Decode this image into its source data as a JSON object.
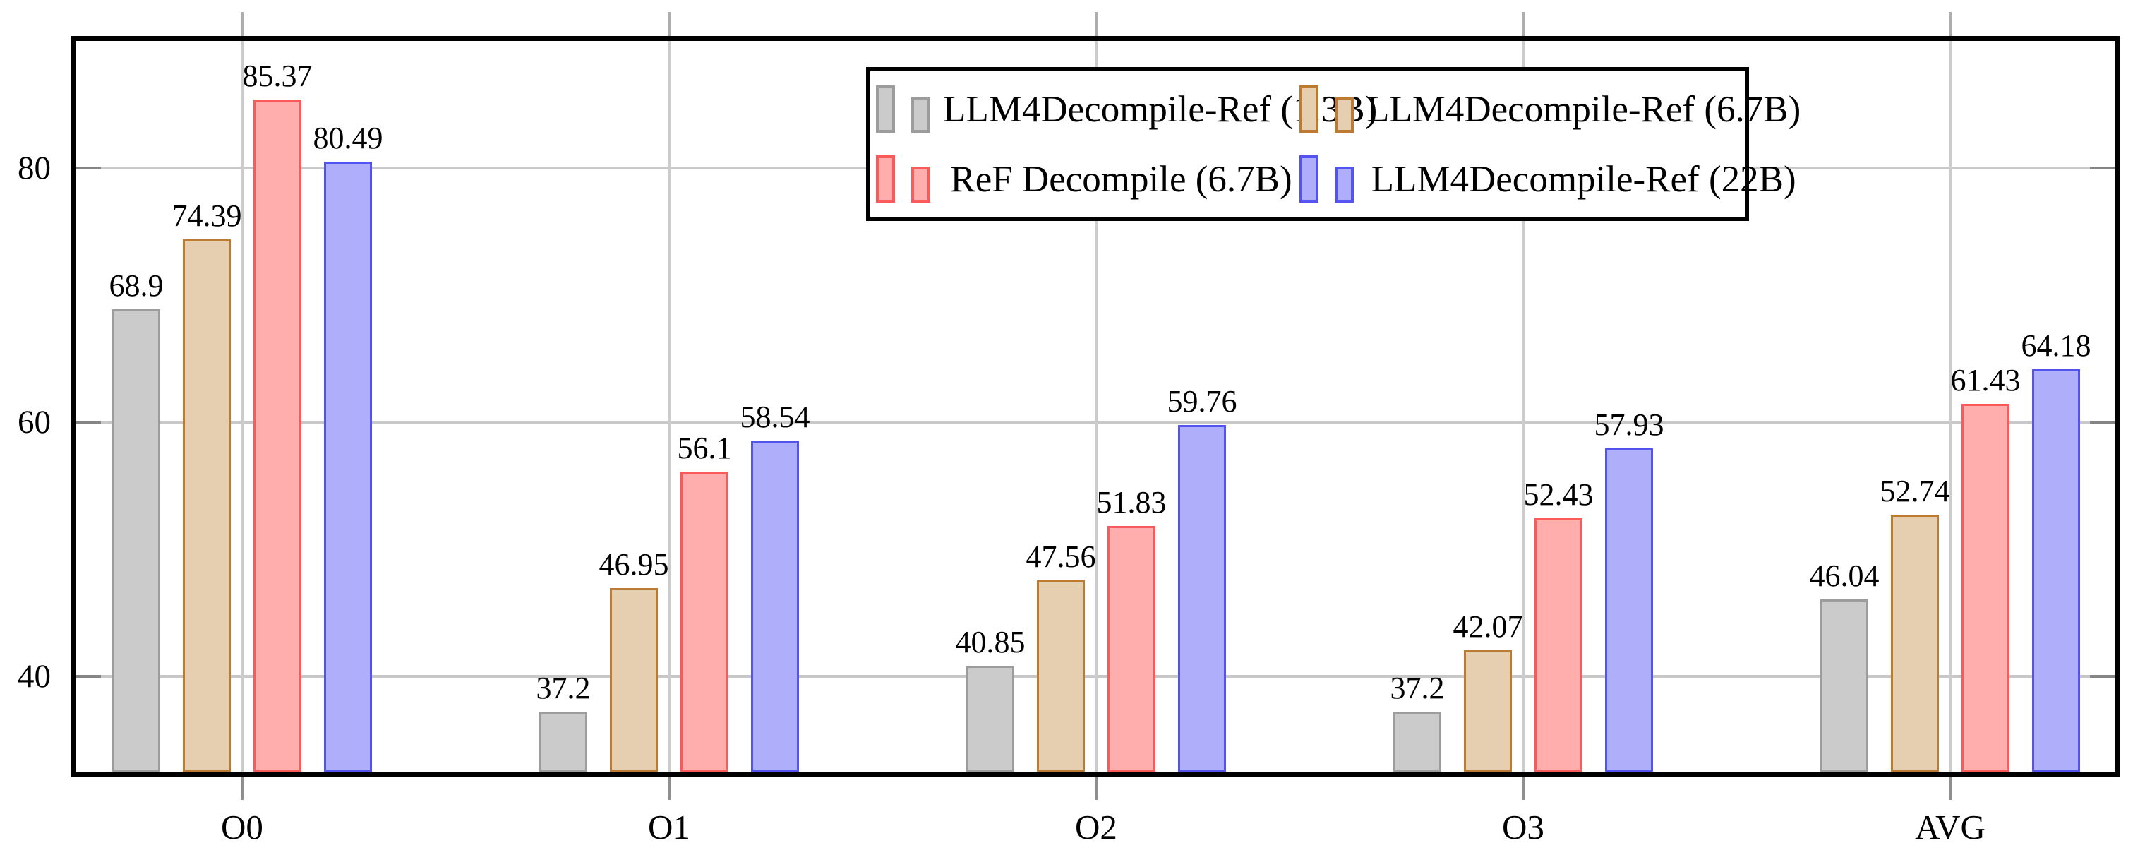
{
  "chart_data": {
    "type": "bar",
    "title": "",
    "xlabel": "",
    "ylabel": "",
    "categories": [
      "O0",
      "O1",
      "O2",
      "O3",
      "AVG"
    ],
    "series": [
      {
        "name": "LLM4Decompile-Ref (1.3B)",
        "fill": "#cbcbcb",
        "stroke": "#9c9c9c",
        "values": [
          68.9,
          37.2,
          40.85,
          37.2,
          46.04
        ]
      },
      {
        "name": "LLM4Decompile-Ref (6.7B)",
        "fill": "#e6cfb1",
        "stroke": "#bd7b31",
        "values": [
          74.39,
          46.95,
          47.56,
          42.07,
          52.74
        ]
      },
      {
        "name": "ReF Decompile (6.7B)",
        "fill": "#ffadad",
        "stroke": "#fa5a5a",
        "values": [
          85.37,
          56.1,
          51.83,
          52.43,
          61.43
        ]
      },
      {
        "name": "LLM4Decompile-Ref (22B)",
        "fill": "#aeaefa",
        "stroke": "#5353f0",
        "values": [
          80.49,
          58.54,
          59.76,
          57.93,
          64.18
        ]
      }
    ],
    "yticks": [
      40,
      60,
      80
    ],
    "ylim": [
      32.5,
      90
    ],
    "grid": true,
    "bar_value_labels_shown": true,
    "legend_position": "top-center",
    "legend_rows": [
      [
        0,
        1
      ],
      [
        2,
        3
      ]
    ]
  },
  "colors": {
    "background": "#ffffff",
    "text": "#000000",
    "frame": "#000000",
    "hgrid": "#c8c8c8",
    "vgrid": "#cccccc",
    "tick": "#858585"
  }
}
